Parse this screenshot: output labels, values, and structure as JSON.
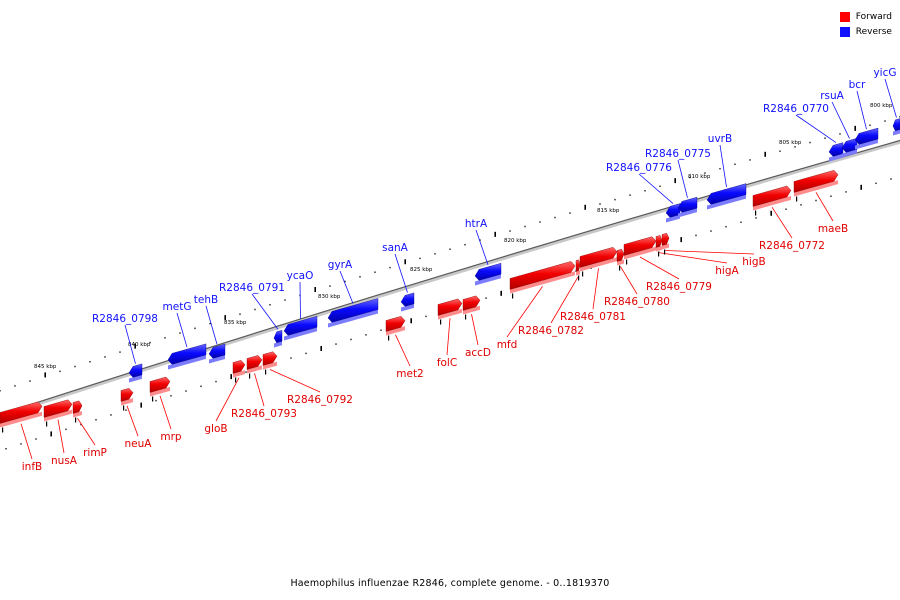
{
  "legend": {
    "forward_label": "Forward",
    "reverse_label": "Reverse",
    "forward_color": "#ff0000",
    "reverse_color": "#1010ff"
  },
  "caption": "Haemophilus influenzae R2846, complete genome. - 0..1819370",
  "ticks": [
    "845 kbp",
    "840 kbp",
    "835 kbp",
    "830 kbp",
    "825 kbp",
    "820 kbp",
    "815 kbp",
    "810 kbp",
    "805 kbp",
    "800 kbp"
  ],
  "genes": [
    {
      "name": "infB",
      "strand": "forward"
    },
    {
      "name": "nusA",
      "strand": "forward"
    },
    {
      "name": "rimP",
      "strand": "forward"
    },
    {
      "name": "neuA",
      "strand": "forward"
    },
    {
      "name": "mrp",
      "strand": "forward"
    },
    {
      "name": "R2846_0798",
      "strand": "reverse"
    },
    {
      "name": "metG",
      "strand": "reverse"
    },
    {
      "name": "tehB",
      "strand": "reverse"
    },
    {
      "name": "gloB",
      "strand": "forward"
    },
    {
      "name": "R2846_0793",
      "strand": "forward"
    },
    {
      "name": "R2846_0792",
      "strand": "forward"
    },
    {
      "name": "R2846_0791",
      "strand": "reverse"
    },
    {
      "name": "ycaO",
      "strand": "reverse"
    },
    {
      "name": "gyrA",
      "strand": "reverse"
    },
    {
      "name": "met2",
      "strand": "forward"
    },
    {
      "name": "sanA",
      "strand": "reverse"
    },
    {
      "name": "folC",
      "strand": "forward"
    },
    {
      "name": "accD",
      "strand": "forward"
    },
    {
      "name": "htrA",
      "strand": "reverse"
    },
    {
      "name": "mfd",
      "strand": "forward"
    },
    {
      "name": "R2846_0782",
      "strand": "forward"
    },
    {
      "name": "R2846_0781",
      "strand": "forward"
    },
    {
      "name": "R2846_0780",
      "strand": "forward"
    },
    {
      "name": "R2846_0779",
      "strand": "forward"
    },
    {
      "name": "higA",
      "strand": "forward"
    },
    {
      "name": "higB",
      "strand": "forward"
    },
    {
      "name": "R2846_0776",
      "strand": "reverse"
    },
    {
      "name": "R2846_0775",
      "strand": "reverse"
    },
    {
      "name": "uvrB",
      "strand": "reverse"
    },
    {
      "name": "R2846_0772",
      "strand": "forward"
    },
    {
      "name": "maeB",
      "strand": "forward"
    },
    {
      "name": "R2846_0770",
      "strand": "reverse"
    },
    {
      "name": "rsuA",
      "strand": "reverse"
    },
    {
      "name": "bcr",
      "strand": "reverse"
    },
    {
      "name": "yicG",
      "strand": "reverse"
    }
  ]
}
